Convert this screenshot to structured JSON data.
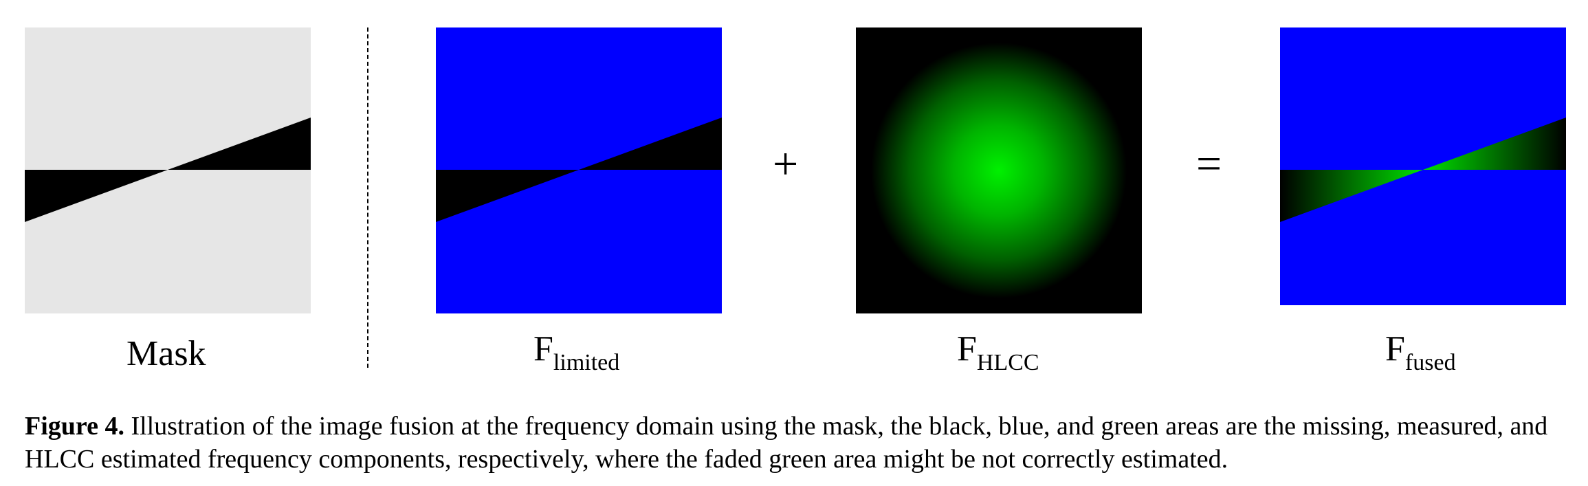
{
  "figure": {
    "panels": [
      {
        "id": "mask",
        "label": "Mask",
        "sub": ""
      },
      {
        "id": "limited",
        "label": "F",
        "sub": "limited"
      },
      {
        "id": "hlcc",
        "label": "F",
        "sub": "HLCC"
      },
      {
        "id": "fused",
        "label": "F",
        "sub": "fused"
      }
    ],
    "operators": {
      "plus": "+",
      "equal": "="
    },
    "colors": {
      "mask_background": "#e6e6e6",
      "missing": "#000000",
      "measured": "#0000ff",
      "hlcc_estimated": "#00e600"
    }
  },
  "caption": {
    "label": "Figure 4.",
    "text": " Illustration of the image fusion at the frequency domain using the mask, the black, blue, and green areas are the missing, measured, and HLCC estimated frequency components, respectively, where the faded green area might be not correctly estimated."
  }
}
